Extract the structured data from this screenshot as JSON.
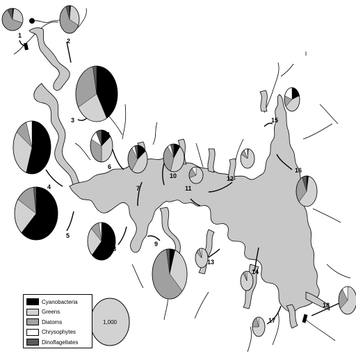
{
  "categories": [
    {
      "key": "cyano",
      "name": "Cyanobacteria",
      "color": "#000000"
    },
    {
      "key": "greens",
      "name": "Greens",
      "color": "#d2d2d2"
    },
    {
      "key": "diatoms",
      "name": "Diatoms",
      "color": "#a0a0a0"
    },
    {
      "key": "chryso",
      "name": "Chrysophytes",
      "color": "#ffffff"
    },
    {
      "key": "dino",
      "name": "Dinoflagellates",
      "color": "#5a5a5a"
    }
  ],
  "water_color": "#c8c8c8",
  "scale": {
    "label": "1,000"
  },
  "sites": [
    {
      "label": "1",
      "shares": [
        0.02,
        0.28,
        0.62,
        0.0,
        0.08
      ]
    },
    {
      "label": "2",
      "shares": [
        0.02,
        0.3,
        0.62,
        0.0,
        0.06
      ]
    },
    {
      "label": "3",
      "shares": [
        0.42,
        0.25,
        0.3,
        0.0,
        0.03
      ]
    },
    {
      "label": "4",
      "shares": [
        0.55,
        0.3,
        0.1,
        0.05,
        0.0
      ]
    },
    {
      "label": "5",
      "shares": [
        0.62,
        0.22,
        0.14,
        0.0,
        0.02
      ]
    },
    {
      "label": "6",
      "shares": [
        0.15,
        0.35,
        0.32,
        0.1,
        0.08
      ]
    },
    {
      "label": "7",
      "shares": [
        0.15,
        0.45,
        0.3,
        0.05,
        0.05
      ]
    },
    {
      "label": "8",
      "shares": [
        0.62,
        0.25,
        0.1,
        0.03,
        0.0
      ]
    },
    {
      "label": "9",
      "shares": [
        0.05,
        0.32,
        0.6,
        0.0,
        0.03
      ]
    },
    {
      "label": "10",
      "shares": [
        0.1,
        0.45,
        0.35,
        0.05,
        0.05
      ]
    },
    {
      "label": "11",
      "shares": [
        0.0,
        0.7,
        0.2,
        0.1,
        0.0
      ]
    },
    {
      "label": "12",
      "shares": [
        0.02,
        0.8,
        0.1,
        0.08,
        0.0
      ]
    },
    {
      "label": "13",
      "shares": [
        0.0,
        0.85,
        0.1,
        0.05,
        0.0
      ]
    },
    {
      "label": "14",
      "shares": [
        0.0,
        0.9,
        0.06,
        0.04,
        0.0
      ]
    },
    {
      "label": "15",
      "shares": [
        0.2,
        0.45,
        0.15,
        0.2,
        0.0
      ]
    },
    {
      "label": "16",
      "shares": [
        0.03,
        0.6,
        0.3,
        0.0,
        0.07
      ]
    },
    {
      "label": "17",
      "shares": [
        0.0,
        0.75,
        0.2,
        0.05,
        0.0
      ]
    },
    {
      "label": "18",
      "shares": [
        0.0,
        0.65,
        0.25,
        0.1,
        0.0
      ]
    }
  ]
}
